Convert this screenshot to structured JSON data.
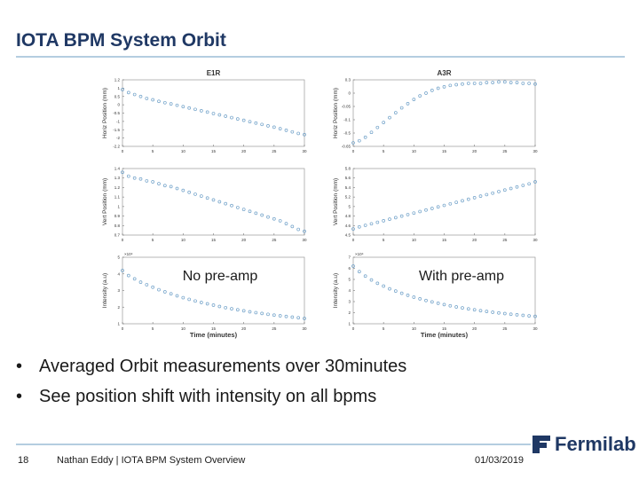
{
  "slide": {
    "title": "IOTA BPM System Orbit",
    "bullets": [
      "Averaged Orbit measurements over 30minutes",
      "See position shift with intensity on all bpms"
    ],
    "page_number": "18",
    "footer": "Nathan Eddy | IOTA BPM System Overview",
    "date": "01/03/2019",
    "logo_text": "Fermilab",
    "logo_icon": "fermilab-logo-icon"
  },
  "colors": {
    "title": "#1f3864",
    "rule": "#b4cde0",
    "marker": "#6fa0c8"
  },
  "annotations": {
    "left": "No pre-amp",
    "right": "With pre-amp"
  },
  "chart_data": [
    {
      "type": "scatter",
      "title": "E1R",
      "xlabel": "",
      "ylabel": "Horiz Position (mm)",
      "xlim": [
        0,
        30
      ],
      "ylim": [
        -2.2,
        1.2
      ],
      "xticks": [
        0,
        5,
        10,
        15,
        20,
        25,
        30
      ],
      "yticks": [
        "1.2",
        "1",
        "0.5",
        "0",
        "-0.5",
        "-1",
        "-1.5",
        "-2",
        "-2.2"
      ],
      "x": [
        0,
        1,
        2,
        3,
        4,
        5,
        6,
        7,
        8,
        9,
        10,
        11,
        12,
        13,
        14,
        15,
        16,
        17,
        18,
        19,
        20,
        21,
        22,
        23,
        24,
        25,
        26,
        27,
        28,
        29,
        30
      ],
      "y": [
        0.7,
        0.55,
        0.45,
        0.35,
        0.25,
        0.18,
        0.1,
        0.03,
        -0.03,
        -0.1,
        -0.17,
        -0.24,
        -0.31,
        -0.38,
        -0.45,
        -0.52,
        -0.59,
        -0.66,
        -0.73,
        -0.8,
        -0.87,
        -0.94,
        -1.01,
        -1.08,
        -1.15,
        -1.22,
        -1.3,
        -1.38,
        -1.46,
        -1.54,
        -1.6
      ]
    },
    {
      "type": "scatter",
      "title": "A3R",
      "xlabel": "",
      "ylabel": "Horiz Position (mm)",
      "xlim": [
        0,
        30
      ],
      "ylim": [
        -0.65,
        0.3
      ],
      "xticks": [
        0,
        5,
        10,
        15,
        20,
        25,
        30
      ],
      "yticks": [
        "0.3",
        "0",
        "-0.05",
        "-0.1",
        "-0.5",
        "-0.65"
      ],
      "x": [
        0,
        1,
        2,
        3,
        4,
        5,
        6,
        7,
        8,
        9,
        10,
        11,
        12,
        13,
        14,
        15,
        16,
        17,
        18,
        19,
        20,
        21,
        22,
        23,
        24,
        25,
        26,
        27,
        28,
        29,
        30
      ],
      "y": [
        -0.6,
        -0.57,
        -0.52,
        -0.45,
        -0.38,
        -0.31,
        -0.24,
        -0.17,
        -0.1,
        -0.04,
        0.02,
        0.07,
        0.11,
        0.15,
        0.18,
        0.2,
        0.22,
        0.23,
        0.24,
        0.25,
        0.25,
        0.25,
        0.26,
        0.26,
        0.27,
        0.27,
        0.26,
        0.26,
        0.25,
        0.25,
        0.24
      ]
    },
    {
      "type": "scatter",
      "title": "",
      "xlabel": "",
      "ylabel": "Vert Position (mm)",
      "xlim": [
        0,
        30
      ],
      "ylim": [
        0.7,
        1.4
      ],
      "xticks": [
        0,
        5,
        10,
        15,
        20,
        25,
        30
      ],
      "yticks": [
        "1.4",
        "1.3",
        "1.2",
        "1.1",
        "1",
        "0.9",
        "0.8",
        "0.7"
      ],
      "x": [
        0,
        1,
        2,
        3,
        4,
        5,
        6,
        7,
        8,
        9,
        10,
        11,
        12,
        13,
        14,
        15,
        16,
        17,
        18,
        19,
        20,
        21,
        22,
        23,
        24,
        25,
        26,
        27,
        28,
        29,
        30
      ],
      "y": [
        1.36,
        1.32,
        1.3,
        1.29,
        1.27,
        1.26,
        1.24,
        1.22,
        1.21,
        1.19,
        1.17,
        1.15,
        1.13,
        1.11,
        1.09,
        1.07,
        1.05,
        1.03,
        1.01,
        0.99,
        0.97,
        0.95,
        0.93,
        0.91,
        0.89,
        0.87,
        0.85,
        0.82,
        0.79,
        0.76,
        0.74
      ]
    },
    {
      "type": "scatter",
      "title": "",
      "xlabel": "",
      "ylabel": "Vert Position (mm)",
      "xlim": [
        0,
        30
      ],
      "ylim": [
        4.5,
        5.8
      ],
      "xticks": [
        0,
        5,
        10,
        15,
        20,
        25,
        30
      ],
      "yticks": [
        "5.8",
        "5.6",
        "5.4",
        "5.2",
        "5",
        "4.8",
        "4.6",
        "4.5"
      ],
      "x": [
        0,
        1,
        2,
        3,
        4,
        5,
        6,
        7,
        8,
        9,
        10,
        11,
        12,
        13,
        14,
        15,
        16,
        17,
        18,
        19,
        20,
        21,
        22,
        23,
        24,
        25,
        26,
        27,
        28,
        29,
        30
      ],
      "y": [
        4.62,
        4.66,
        4.69,
        4.72,
        4.75,
        4.78,
        4.81,
        4.84,
        4.87,
        4.9,
        4.93,
        4.96,
        4.99,
        5.02,
        5.05,
        5.08,
        5.11,
        5.14,
        5.17,
        5.2,
        5.23,
        5.26,
        5.29,
        5.32,
        5.35,
        5.38,
        5.41,
        5.44,
        5.47,
        5.5,
        5.54
      ]
    },
    {
      "type": "scatter",
      "title": "",
      "xlabel": "Time (minutes)",
      "ylabel": "Intensity (a.u)",
      "xlim": [
        0,
        30
      ],
      "ylim": [
        1,
        5
      ],
      "exponent": "×10⁴",
      "xticks": [
        0,
        5,
        10,
        15,
        20,
        25,
        30
      ],
      "yticks": [
        "5",
        "4",
        "3",
        "2",
        "1"
      ],
      "x": [
        0,
        1,
        2,
        3,
        4,
        5,
        6,
        7,
        8,
        9,
        10,
        11,
        12,
        13,
        14,
        15,
        16,
        17,
        18,
        19,
        20,
        21,
        22,
        23,
        24,
        25,
        26,
        27,
        28,
        29,
        30
      ],
      "y": [
        4.2,
        3.9,
        3.7,
        3.5,
        3.35,
        3.2,
        3.05,
        2.92,
        2.8,
        2.68,
        2.57,
        2.47,
        2.37,
        2.28,
        2.2,
        2.12,
        2.04,
        1.97,
        1.9,
        1.84,
        1.78,
        1.72,
        1.67,
        1.62,
        1.57,
        1.52,
        1.48,
        1.44,
        1.4,
        1.36,
        1.32
      ]
    },
    {
      "type": "scatter",
      "title": "",
      "xlabel": "Time (minutes)",
      "ylabel": "Intensity (a.u)",
      "xlim": [
        0,
        30
      ],
      "ylim": [
        1,
        7
      ],
      "exponent": "×10⁴",
      "xticks": [
        0,
        5,
        10,
        15,
        20,
        25,
        30
      ],
      "yticks": [
        "7",
        "6",
        "5",
        "4",
        "3",
        "2",
        "1"
      ],
      "x": [
        0,
        1,
        2,
        3,
        4,
        5,
        6,
        7,
        8,
        9,
        10,
        11,
        12,
        13,
        14,
        15,
        16,
        17,
        18,
        19,
        20,
        21,
        22,
        23,
        24,
        25,
        26,
        27,
        28,
        29,
        30
      ],
      "y": [
        6.2,
        5.7,
        5.3,
        4.95,
        4.65,
        4.4,
        4.15,
        3.95,
        3.75,
        3.57,
        3.4,
        3.25,
        3.1,
        2.97,
        2.85,
        2.73,
        2.62,
        2.52,
        2.43,
        2.34,
        2.26,
        2.18,
        2.11,
        2.04,
        1.98,
        1.92,
        1.86,
        1.81,
        1.76,
        1.71,
        1.67
      ]
    }
  ]
}
